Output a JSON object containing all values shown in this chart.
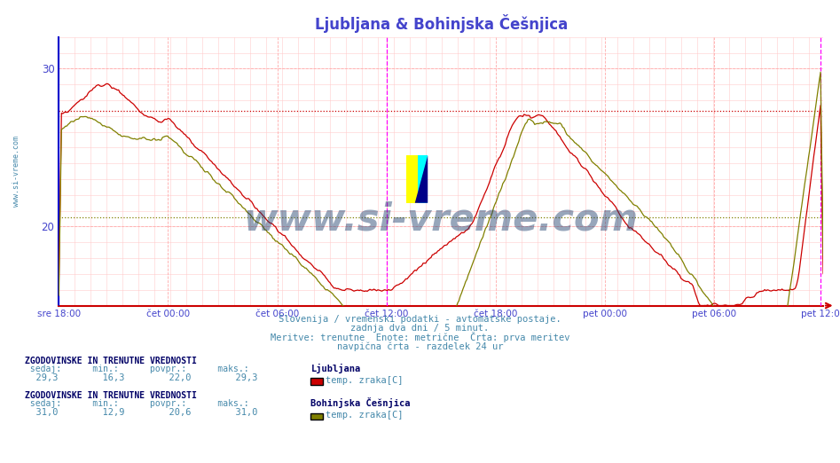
{
  "title": "Ljubljana & Bohinjska Češnjica",
  "title_color": "#4444cc",
  "bg_color": "#ffffff",
  "plot_bg_color": "#ffffff",
  "ylabel_color": "#4444cc",
  "xlabel_color": "#4444cc",
  "xlabels": [
    "sre 18:00",
    "čet 00:00",
    "čet 06:00",
    "čet 12:00",
    "čet 18:00",
    "pet 00:00",
    "pet 06:00",
    "pet 12:00"
  ],
  "ylim": [
    15,
    32
  ],
  "yticks": [
    20,
    30
  ],
  "line1_color": "#cc0000",
  "line2_color": "#808000",
  "vline_color": "#ff00ff",
  "avg1": 27.3,
  "avg2": 20.6,
  "avg_line1_color": "#cc0000",
  "avg_line2_color": "#808000",
  "watermark": "www.si-vreme.com",
  "subtitle_lines": [
    "Slovenija / vremenski podatki - avtomatske postaje.",
    "zadnja dva dni / 5 minut.",
    "Meritve: trenutne  Enote: metrične  Črta: prva meritev",
    "navpična črta - razdelek 24 ur"
  ],
  "legend1_label": "Ljubljana",
  "legend1_sublabel": "temp. zraka[C]",
  "legend1_color": "#cc0000",
  "legend2_label": "Bohinjska Češnjica",
  "legend2_sublabel": "temp. zraka[C]",
  "legend2_color": "#808000",
  "stats1": {
    "sedaj": "29,3",
    "min": "16,3",
    "povpr": "22,0",
    "maks": "29,3"
  },
  "stats2": {
    "sedaj": "31,0",
    "min": "12,9",
    "povpr": "20,6",
    "maks": "31,0"
  }
}
